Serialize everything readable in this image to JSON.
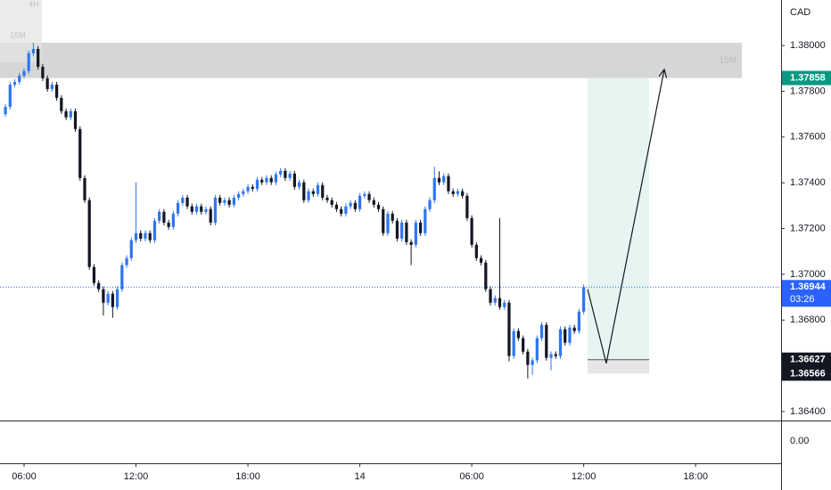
{
  "chart_data": {
    "type": "candlestick",
    "currency": "CAD",
    "up_color": "#2f76f0",
    "down_color": "#131722",
    "x": [
      5,
      5.25,
      5.5,
      5.75,
      6,
      6.25,
      6.5,
      6.75,
      7,
      7.25,
      7.5,
      7.75,
      8,
      8.25,
      8.5,
      8.75,
      9,
      9.25,
      9.5,
      9.75,
      10,
      10.25,
      10.5,
      10.75,
      11,
      11.25,
      11.5,
      11.75,
      12,
      12.25,
      12.5,
      12.75,
      13,
      13.25,
      13.5,
      13.75,
      14,
      14.25,
      14.5,
      14.75,
      15,
      15.25,
      15.5,
      15.75,
      16,
      16.25,
      16.5,
      16.75,
      17,
      17.25,
      17.5,
      17.75,
      18,
      18.25,
      18.5,
      18.75,
      19,
      19.25,
      19.5,
      19.75,
      20,
      20.25,
      20.5,
      20.75,
      21,
      21.25,
      21.5,
      21.75,
      22,
      22.25,
      22.5,
      22.75,
      23,
      23.25,
      23.5,
      23.75,
      24,
      24.25,
      24.5,
      24.75,
      25,
      25.25,
      25.5,
      25.75,
      26,
      26.25,
      26.5,
      26.75,
      27,
      27.25,
      27.5,
      27.75,
      28,
      28.25,
      28.5,
      28.75,
      29,
      29.25,
      29.5,
      29.75,
      30,
      30.25,
      30.5,
      30.75,
      31,
      31.25,
      31.5,
      31.75,
      32,
      32.25,
      32.5,
      32.75,
      33,
      33.25,
      33.5,
      33.75,
      34,
      34.25,
      34.5,
      34.75,
      35,
      35.25,
      35.5,
      35.75,
      36
    ],
    "open": [
      1.377,
      1.37732,
      1.37829,
      1.37841,
      1.37868,
      1.37888,
      1.37966,
      1.37985,
      1.37907,
      1.37857,
      1.3781,
      1.37829,
      1.37771,
      1.37713,
      1.37686,
      1.37713,
      1.37635,
      1.37421,
      1.37324,
      1.37032,
      1.36962,
      1.36935,
      1.36876,
      1.36915,
      1.36857,
      1.36935,
      1.3704,
      1.37071,
      1.37149,
      1.3718,
      1.37156,
      1.3718,
      1.37149,
      1.37234,
      1.37273,
      1.37226,
      1.37207,
      1.37265,
      1.37312,
      1.37335,
      1.37297,
      1.37273,
      1.37297,
      1.37273,
      1.37285,
      1.37226,
      1.37335,
      1.37312,
      1.37324,
      1.37304,
      1.37335,
      1.37351,
      1.37363,
      1.37382,
      1.37374,
      1.37413,
      1.37402,
      1.37421,
      1.37402,
      1.37437,
      1.37452,
      1.37421,
      1.3744,
      1.37382,
      1.37402,
      1.37324,
      1.37363,
      1.37351,
      1.3739,
      1.37335,
      1.37324,
      1.37304,
      1.37285,
      1.37265,
      1.37297,
      1.37312,
      1.37285,
      1.37343,
      1.37351,
      1.37324,
      1.37304,
      1.37285,
      1.3718,
      1.37265,
      1.37234,
      1.37156,
      1.37226,
      1.37141,
      1.37129,
      1.37226,
      1.3718,
      1.37285,
      1.37324,
      1.37421,
      1.37402,
      1.37429,
      1.37363,
      1.37351,
      1.37363,
      1.37343,
      1.37246,
      1.37129,
      1.37071,
      1.37051,
      1.36935,
      1.36876,
      1.36896,
      1.36857,
      1.36876,
      1.36643,
      1.36752,
      1.36721,
      1.36662,
      1.36604,
      1.36624,
      1.36721,
      1.36779,
      1.36635,
      1.36651,
      1.36643,
      1.3676,
      1.36701,
      1.36767,
      1.36752,
      1.36837
    ],
    "high": [
      1.37744,
      1.37841,
      1.37853,
      1.3788,
      1.379,
      1.37978,
      1.38012,
      1.37997,
      1.37919,
      1.37869,
      1.37841,
      1.37841,
      1.37783,
      1.37725,
      1.37725,
      1.37725,
      1.37647,
      1.37433,
      1.37336,
      1.37044,
      1.36974,
      1.36947,
      1.36927,
      1.36927,
      1.36947,
      1.37052,
      1.37083,
      1.37161,
      1.37402,
      1.37192,
      1.37192,
      1.37192,
      1.37246,
      1.37285,
      1.37285,
      1.37238,
      1.37277,
      1.37324,
      1.37347,
      1.37347,
      1.37309,
      1.37309,
      1.37309,
      1.37297,
      1.37297,
      1.37347,
      1.37347,
      1.37336,
      1.37336,
      1.37347,
      1.37363,
      1.37375,
      1.37394,
      1.37394,
      1.37425,
      1.37425,
      1.37433,
      1.37433,
      1.37449,
      1.37464,
      1.37464,
      1.37452,
      1.37452,
      1.37414,
      1.37414,
      1.37375,
      1.37375,
      1.37402,
      1.37402,
      1.37347,
      1.37336,
      1.37316,
      1.37297,
      1.37309,
      1.37324,
      1.37324,
      1.37355,
      1.37363,
      1.37363,
      1.37336,
      1.37316,
      1.37297,
      1.37277,
      1.37277,
      1.37246,
      1.37238,
      1.37238,
      1.37153,
      1.37238,
      1.37238,
      1.37297,
      1.37336,
      1.3747,
      1.3745,
      1.37441,
      1.37441,
      1.37375,
      1.37375,
      1.37375,
      1.37355,
      1.37258,
      1.37141,
      1.37083,
      1.37063,
      1.36947,
      1.36908,
      1.37246,
      1.36888,
      1.36888,
      1.36764,
      1.36764,
      1.36733,
      1.36674,
      1.36636,
      1.36733,
      1.36791,
      1.36791,
      1.36663,
      1.36663,
      1.36772,
      1.36772,
      1.36779,
      1.36779,
      1.36849,
      1.36956
    ],
    "low": [
      1.37688,
      1.3772,
      1.37817,
      1.37829,
      1.37856,
      1.37876,
      1.37954,
      1.37895,
      1.37845,
      1.37798,
      1.37798,
      1.37759,
      1.37701,
      1.37674,
      1.37674,
      1.37623,
      1.37409,
      1.37312,
      1.3702,
      1.3695,
      1.36923,
      1.3682,
      1.36864,
      1.3681,
      1.36845,
      1.36923,
      1.37028,
      1.37059,
      1.37137,
      1.37144,
      1.37144,
      1.37137,
      1.37137,
      1.37222,
      1.37214,
      1.37195,
      1.37195,
      1.37253,
      1.373,
      1.37285,
      1.37261,
      1.37261,
      1.37261,
      1.37261,
      1.37214,
      1.37214,
      1.373,
      1.373,
      1.37292,
      1.37292,
      1.37323,
      1.37339,
      1.37351,
      1.37362,
      1.37362,
      1.3739,
      1.3739,
      1.3739,
      1.3739,
      1.37425,
      1.37409,
      1.37409,
      1.3737,
      1.3737,
      1.37312,
      1.37312,
      1.37339,
      1.37339,
      1.37323,
      1.37312,
      1.37292,
      1.37273,
      1.37253,
      1.37253,
      1.37285,
      1.37273,
      1.37273,
      1.37331,
      1.37312,
      1.37292,
      1.37273,
      1.37168,
      1.37168,
      1.37222,
      1.37144,
      1.37144,
      1.37129,
      1.3704,
      1.37117,
      1.37168,
      1.37168,
      1.37273,
      1.37312,
      1.3739,
      1.3739,
      1.37351,
      1.37339,
      1.37339,
      1.37331,
      1.37234,
      1.37117,
      1.37059,
      1.37039,
      1.36923,
      1.36864,
      1.36864,
      1.36845,
      1.36845,
      1.3662,
      1.36631,
      1.36709,
      1.3665,
      1.36545,
      1.3656,
      1.36612,
      1.36709,
      1.36623,
      1.3658,
      1.36631,
      1.36631,
      1.36689,
      1.36689,
      1.3674,
      1.3674,
      1.36825
    ],
    "close": [
      1.37732,
      1.37829,
      1.37841,
      1.37868,
      1.37888,
      1.37966,
      1.37985,
      1.37907,
      1.37857,
      1.3781,
      1.37829,
      1.37771,
      1.37713,
      1.37686,
      1.37713,
      1.37635,
      1.37421,
      1.37324,
      1.37032,
      1.36962,
      1.36935,
      1.36876,
      1.36915,
      1.36857,
      1.36935,
      1.3704,
      1.37071,
      1.37149,
      1.3718,
      1.37156,
      1.3718,
      1.37149,
      1.37234,
      1.37273,
      1.37226,
      1.37207,
      1.37265,
      1.37312,
      1.37335,
      1.37297,
      1.37273,
      1.37297,
      1.37273,
      1.37285,
      1.37226,
      1.37335,
      1.37312,
      1.37324,
      1.37304,
      1.37335,
      1.37351,
      1.37363,
      1.37382,
      1.37374,
      1.37413,
      1.37402,
      1.37421,
      1.37402,
      1.37437,
      1.37452,
      1.37421,
      1.3744,
      1.37382,
      1.37402,
      1.37324,
      1.37363,
      1.37351,
      1.3739,
      1.37335,
      1.37324,
      1.37304,
      1.37285,
      1.37265,
      1.37297,
      1.37312,
      1.37285,
      1.37343,
      1.37351,
      1.37324,
      1.37304,
      1.37285,
      1.3718,
      1.37265,
      1.37234,
      1.37156,
      1.37226,
      1.37141,
      1.37129,
      1.37226,
      1.3718,
      1.37285,
      1.37324,
      1.37421,
      1.37402,
      1.37429,
      1.37363,
      1.37351,
      1.37363,
      1.37343,
      1.37246,
      1.37129,
      1.37071,
      1.37051,
      1.36935,
      1.36876,
      1.36896,
      1.36857,
      1.36876,
      1.36643,
      1.36752,
      1.36721,
      1.36662,
      1.36604,
      1.36624,
      1.36721,
      1.36779,
      1.36635,
      1.36651,
      1.36643,
      1.3676,
      1.36701,
      1.36767,
      1.36752,
      1.36837,
      1.36944
    ],
    "xlim": [
      4.71,
      46.58
    ],
    "xticks": [
      {
        "value": 6,
        "label": "06:00"
      },
      {
        "value": 12,
        "label": "12:00"
      },
      {
        "value": 18,
        "label": "18:00"
      },
      {
        "value": 24,
        "label": "14"
      },
      {
        "value": 30,
        "label": "06:00"
      },
      {
        "value": 36,
        "label": "12:00"
      },
      {
        "value": 42,
        "label": "18:00"
      }
    ],
    "ylim": [
      1.36361,
      1.38199
    ],
    "yticks": [
      {
        "value": 1.38,
        "label": "1.38000"
      },
      {
        "value": 1.378,
        "label": "1.37800"
      },
      {
        "value": 1.376,
        "label": "1.37600"
      },
      {
        "value": 1.374,
        "label": "1.37400"
      },
      {
        "value": 1.372,
        "label": "1.37200"
      },
      {
        "value": 1.37,
        "label": "1.37000"
      },
      {
        "value": 1.368,
        "label": "1.36800"
      },
      {
        "value": 1.364,
        "label": "1.36400"
      }
    ],
    "lower_pane_tick": {
      "value": 0,
      "label": "0.00"
    },
    "grid": false,
    "zone": {
      "top": 1.38012,
      "bottom": 1.37858,
      "end": 44.48,
      "label": "15M",
      "color": "#cfcfcf"
    },
    "timeframe_labels": [
      "4H",
      "15M"
    ],
    "position": {
      "start": 36.21,
      "end": 39.51,
      "target": 1.37858,
      "entry": 1.36627,
      "stop": 1.36566,
      "profit_color": "#e6f5f1",
      "loss_color": "#e6e6e6"
    },
    "arrow": {
      "x": [
        36.21,
        37.21,
        40.32
      ],
      "y": [
        1.36935,
        1.36611,
        1.37896
      ]
    },
    "price_labels": [
      {
        "value": 1.37858,
        "label": "1.37858",
        "color": "#089981"
      },
      {
        "value": 1.36944,
        "label": "1.36944",
        "countdown": "03:26",
        "color": "#2962ff"
      },
      {
        "value": 1.36627,
        "label": "1.36627",
        "color": "#131722"
      },
      {
        "value": 1.36566,
        "label": "1.36566",
        "color": "#131722"
      }
    ]
  }
}
